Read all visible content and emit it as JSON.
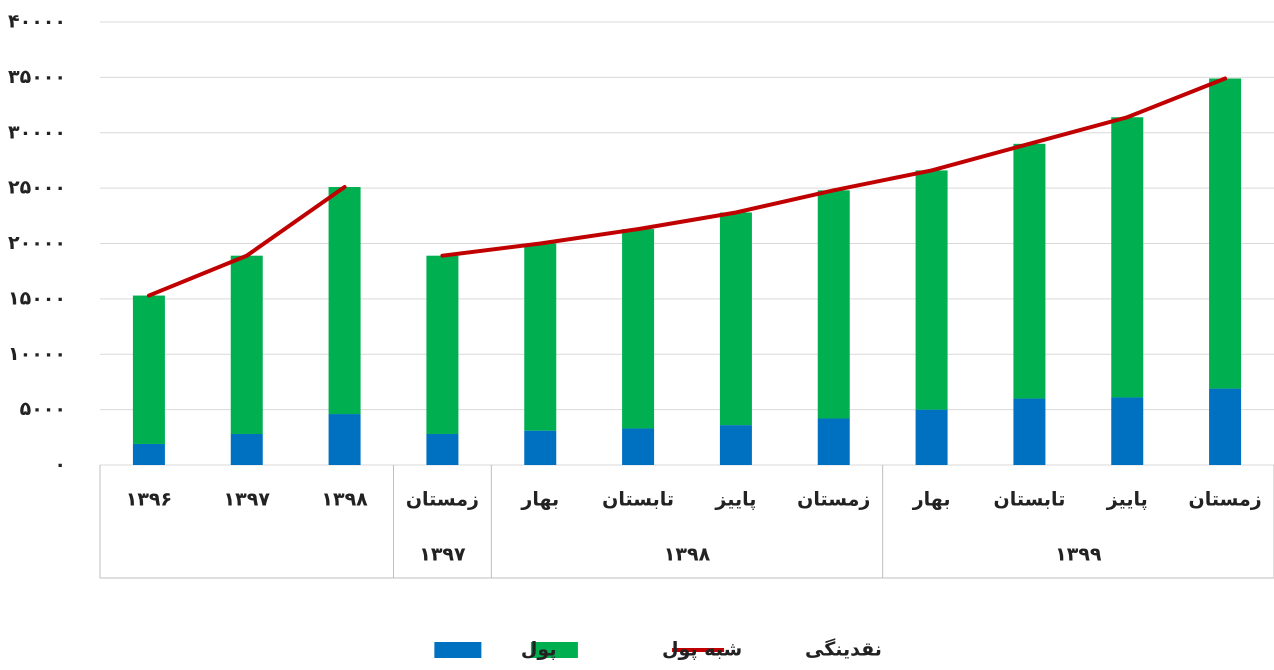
{
  "chart_data": {
    "type": "bar",
    "stacked": true,
    "groups": [
      {
        "label": null,
        "categories": [
          "۱۳۹۶",
          "۱۳۹۷",
          "۱۳۹۸"
        ]
      },
      {
        "label": "۱۳۹۷",
        "categories": [
          "زمستان"
        ]
      },
      {
        "label": "۱۳۹۸",
        "categories": [
          "بهار",
          "تابستان",
          "پاییز",
          "زمستان"
        ]
      },
      {
        "label": "۱۳۹۹",
        "categories": [
          "بهار",
          "تابستان",
          "پاییز",
          "زمستان"
        ]
      }
    ],
    "series": [
      {
        "name": "پول",
        "type": "bar",
        "color": "#0070c0",
        "values": [
          1900,
          2800,
          4600,
          2800,
          3100,
          3300,
          3600,
          4200,
          5000,
          6000,
          6100,
          6900
        ]
      },
      {
        "name": "شبه پول",
        "type": "bar",
        "color": "#00b050",
        "values": [
          13400,
          16100,
          20500,
          16100,
          16900,
          18000,
          19200,
          20600,
          21600,
          23000,
          25300,
          28000
        ]
      },
      {
        "name": "نقدینگی",
        "type": "line",
        "color": "#c00000",
        "values": [
          15300,
          18900,
          25100,
          18900,
          20000,
          21300,
          22800,
          24800,
          26600,
          29000,
          31400,
          34900
        ]
      }
    ],
    "ylim": [
      0,
      40000
    ],
    "yticks": [
      {
        "value": 0,
        "label": "۰"
      },
      {
        "value": 5000,
        "label": "۵۰۰۰"
      },
      {
        "value": 10000,
        "label": "۱۰۰۰۰"
      },
      {
        "value": 15000,
        "label": "۱۵۰۰۰"
      },
      {
        "value": 20000,
        "label": "۲۰۰۰۰"
      },
      {
        "value": 25000,
        "label": "۲۵۰۰۰"
      },
      {
        "value": 30000,
        "label": "۳۰۰۰۰"
      },
      {
        "value": 35000,
        "label": "۳۵۰۰۰"
      },
      {
        "value": 40000,
        "label": "۴۰۰۰۰"
      }
    ],
    "grid": true,
    "legend": "bottom"
  }
}
